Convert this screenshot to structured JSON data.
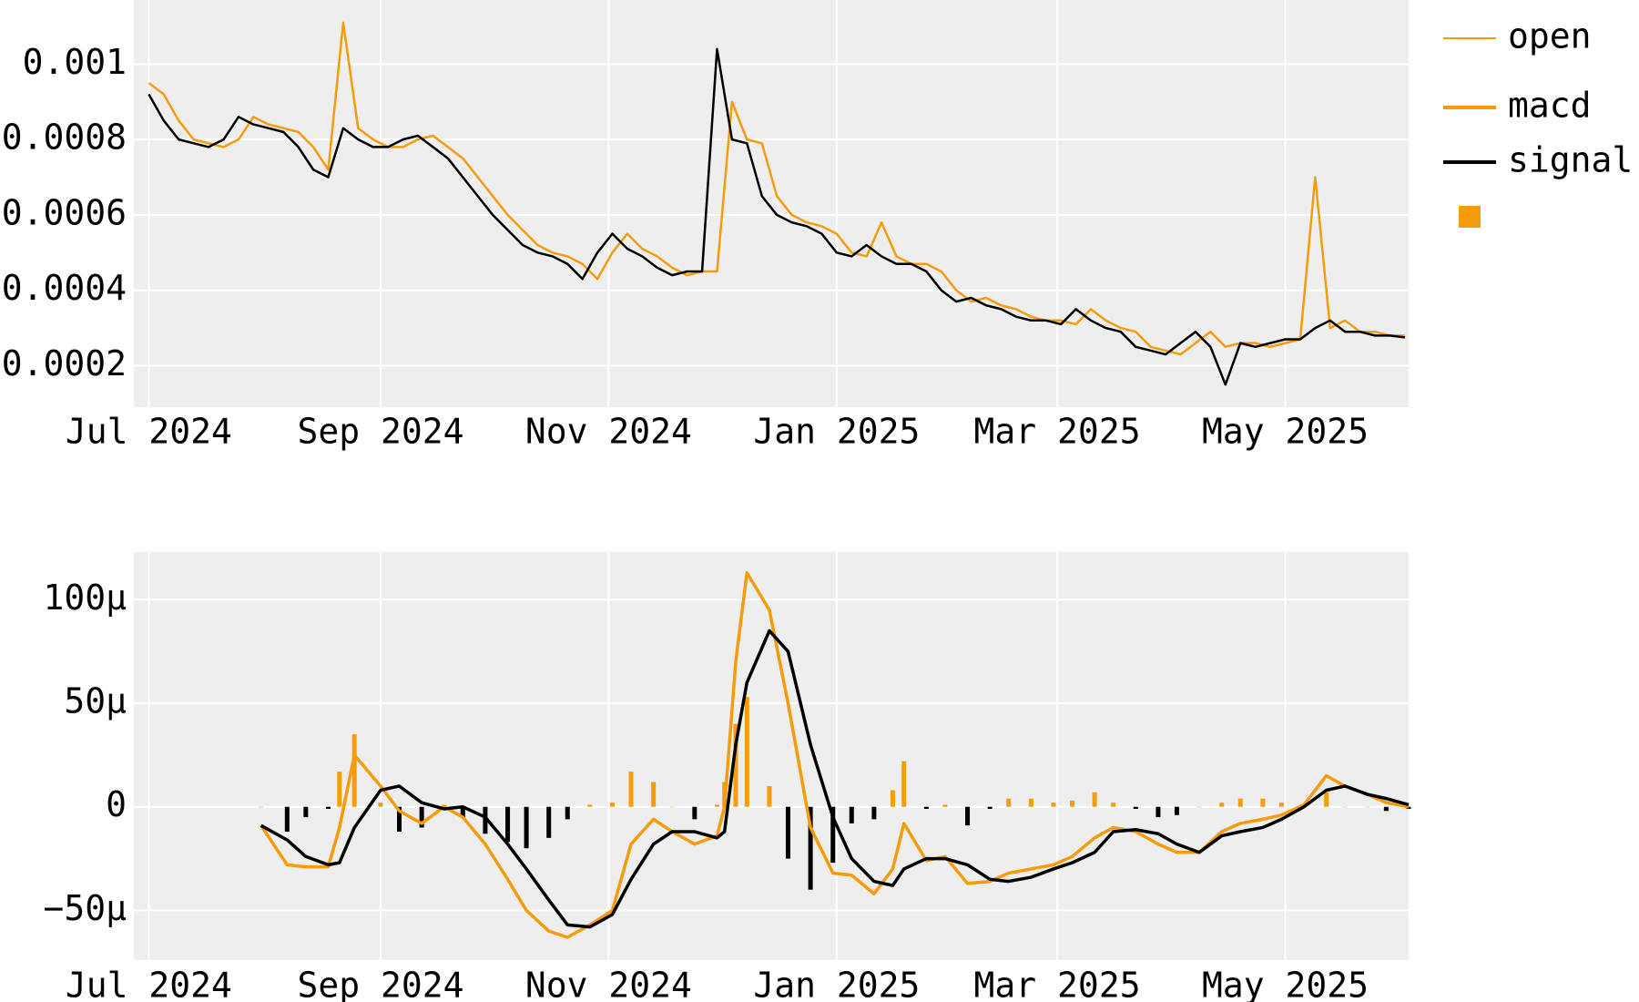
{
  "chart_data": [
    {
      "type": "line",
      "x": [
        0,
        4,
        8,
        12,
        16,
        20,
        24,
        28,
        32,
        36,
        40,
        44,
        48,
        52,
        56,
        60,
        64,
        68,
        72,
        76,
        80,
        84,
        88,
        92,
        96,
        100,
        104,
        108,
        112,
        116,
        120,
        124,
        128,
        132,
        136,
        140,
        144,
        148,
        152,
        156,
        160,
        164,
        168,
        172,
        176,
        180,
        184,
        188,
        192,
        196,
        200,
        204,
        208,
        212,
        216,
        220,
        224,
        228,
        232,
        236,
        240,
        244,
        248,
        252,
        256,
        260,
        264,
        268,
        272,
        276,
        280,
        284,
        288,
        292,
        296,
        300,
        304,
        308,
        312,
        316,
        320,
        324,
        328,
        332,
        336
      ],
      "xlim": [
        -4,
        337
      ],
      "xticks": [
        {
          "value": 0,
          "label": "Jul 2024"
        },
        {
          "value": 62,
          "label": "Sep 2024"
        },
        {
          "value": 123,
          "label": "Nov 2024"
        },
        {
          "value": 184,
          "label": "Jan 2025"
        },
        {
          "value": 243,
          "label": "Mar 2025"
        },
        {
          "value": 304,
          "label": "May 2025"
        }
      ],
      "ylim": [
        9e-05,
        0.00117
      ],
      "yticks": [
        0.0002,
        0.0004,
        0.0006,
        0.0008,
        0.001
      ],
      "grid": true,
      "legend": "right",
      "series": [
        {
          "name": "open",
          "color": "#f59b0c",
          "values": [
            0.00095,
            0.00092,
            0.00085,
            0.0008,
            0.00079,
            0.00078,
            0.0008,
            0.00086,
            0.00084,
            0.00083,
            0.00082,
            0.00078,
            0.00072,
            0.00111,
            0.00083,
            0.0008,
            0.00078,
            0.00078,
            0.0008,
            0.00081,
            0.00078,
            0.00075,
            0.0007,
            0.00065,
            0.0006,
            0.00056,
            0.00052,
            0.0005,
            0.00049,
            0.00047,
            0.00043,
            0.0005,
            0.00055,
            0.00051,
            0.00049,
            0.00046,
            0.00044,
            0.00045,
            0.00045,
            0.0009,
            0.0008,
            0.00079,
            0.00065,
            0.0006,
            0.00058,
            0.00057,
            0.00055,
            0.0005,
            0.00049,
            0.00058,
            0.00049,
            0.00047,
            0.00047,
            0.00045,
            0.0004,
            0.00037,
            0.00038,
            0.00036,
            0.00035,
            0.00033,
            0.00032,
            0.00032,
            0.00031,
            0.00035,
            0.00032,
            0.0003,
            0.00029,
            0.00025,
            0.00024,
            0.00023,
            0.00026,
            0.00029,
            0.00025,
            0.00026,
            0.00026,
            0.00025,
            0.00026,
            0.00027,
            0.0007,
            0.0003,
            0.00032,
            0.00029,
            0.00029,
            0.00028,
            0.00028
          ]
        },
        {
          "color": "#000000",
          "values": [
            0.00092,
            0.00085,
            0.0008,
            0.00079,
            0.00078,
            0.0008,
            0.00086,
            0.00084,
            0.00083,
            0.00082,
            0.00078,
            0.00072,
            0.0007,
            0.00083,
            0.0008,
            0.00078,
            0.00078,
            0.0008,
            0.00081,
            0.00078,
            0.00075,
            0.0007,
            0.00065,
            0.0006,
            0.00056,
            0.00052,
            0.0005,
            0.00049,
            0.00047,
            0.00043,
            0.0005,
            0.00055,
            0.00051,
            0.00049,
            0.00046,
            0.00044,
            0.00045,
            0.00045,
            0.00104,
            0.0008,
            0.00079,
            0.00065,
            0.0006,
            0.00058,
            0.00057,
            0.00055,
            0.0005,
            0.00049,
            0.00052,
            0.00049,
            0.00047,
            0.00047,
            0.00045,
            0.0004,
            0.00037,
            0.00038,
            0.00036,
            0.00035,
            0.00033,
            0.00032,
            0.00032,
            0.00031,
            0.00035,
            0.00032,
            0.0003,
            0.00029,
            0.00025,
            0.00024,
            0.00023,
            0.00026,
            0.00029,
            0.00025,
            0.00015,
            0.00026,
            0.00025,
            0.00026,
            0.00027,
            0.00027,
            0.0003,
            0.00032,
            0.00029,
            0.00029,
            0.00028,
            0.00028,
            0.000275
          ]
        }
      ]
    },
    {
      "type": "line",
      "x": [
        30,
        37,
        42,
        48,
        51,
        55,
        62,
        67,
        73,
        79,
        84,
        90,
        96,
        101,
        107,
        112,
        118,
        124,
        129,
        135,
        140,
        146,
        152,
        154,
        157,
        160,
        166,
        171,
        177,
        183,
        188,
        194,
        199,
        202,
        208,
        213,
        219,
        225,
        230,
        236,
        242,
        247,
        253,
        258,
        264,
        270,
        275,
        281,
        287,
        292,
        298,
        303,
        309,
        315,
        320,
        326,
        331,
        337
      ],
      "xlim": [
        -4,
        337
      ],
      "xticks": [
        {
          "value": 0,
          "label": "Jul 2024"
        },
        {
          "value": 62,
          "label": "Sep 2024"
        },
        {
          "value": 123,
          "label": "Nov 2024"
        },
        {
          "value": 184,
          "label": "Jan 2025"
        },
        {
          "value": 243,
          "label": "Mar 2025"
        },
        {
          "value": 304,
          "label": "May 2025"
        }
      ],
      "ylim": [
        -74,
        123
      ],
      "yticks": [
        {
          "value": -50,
          "label": "−50μ"
        },
        0,
        {
          "value": 50,
          "label": "50μ"
        },
        {
          "value": 100,
          "label": "100μ"
        }
      ],
      "grid": true,
      "series": [
        {
          "name": "macd",
          "color": "#f59b0c",
          "values": [
            -9,
            -28,
            -29,
            -29,
            -10,
            25,
            10,
            -2,
            -8,
            0,
            -5,
            -18,
            -35,
            -50,
            -60,
            -63,
            -57,
            -50,
            -18,
            -6,
            -12,
            -18,
            -14,
            0,
            70,
            113,
            95,
            50,
            -10,
            -32,
            -33,
            -42,
            -30,
            -8,
            -26,
            -24,
            -37,
            -36,
            -32,
            -30,
            -28,
            -24,
            -15,
            -10,
            -12,
            -18,
            -22,
            -22,
            -12,
            -8,
            -6,
            -4,
            1,
            15,
            10,
            6,
            2,
            0
          ]
        },
        {
          "name": "signal",
          "color": "#000000",
          "values": [
            -9,
            -16,
            -24,
            -28,
            -27,
            -10,
            8,
            10,
            2,
            -1,
            0,
            -5,
            -18,
            -30,
            -45,
            -57,
            -58,
            -52,
            -35,
            -18,
            -12,
            -12,
            -15,
            -12,
            30,
            60,
            85,
            75,
            30,
            -5,
            -25,
            -36,
            -38,
            -30,
            -25,
            -25,
            -28,
            -35,
            -36,
            -34,
            -30,
            -27,
            -22,
            -12,
            -11,
            -13,
            -18,
            -22,
            -14,
            -12,
            -10,
            -6,
            0,
            8,
            10,
            6,
            4,
            1
          ]
        },
        {
          "type": "bar",
          "color": "#f59b0c",
          "negative_color": "#000000",
          "values": [
            0,
            -12,
            -5,
            -1,
            17,
            35,
            2,
            -12,
            -10,
            1,
            -5,
            -13,
            -17,
            -20,
            -15,
            -6,
            1,
            2,
            17,
            12,
            0,
            -6,
            1,
            12,
            40,
            53,
            10,
            -25,
            -40,
            -27,
            -8,
            -6,
            8,
            22,
            -1,
            1,
            -9,
            -1,
            4,
            4,
            2,
            3,
            7,
            2,
            -1,
            -5,
            -4,
            0,
            2,
            4,
            4,
            2,
            1,
            7,
            0,
            0,
            -2,
            -1
          ]
        }
      ]
    }
  ]
}
